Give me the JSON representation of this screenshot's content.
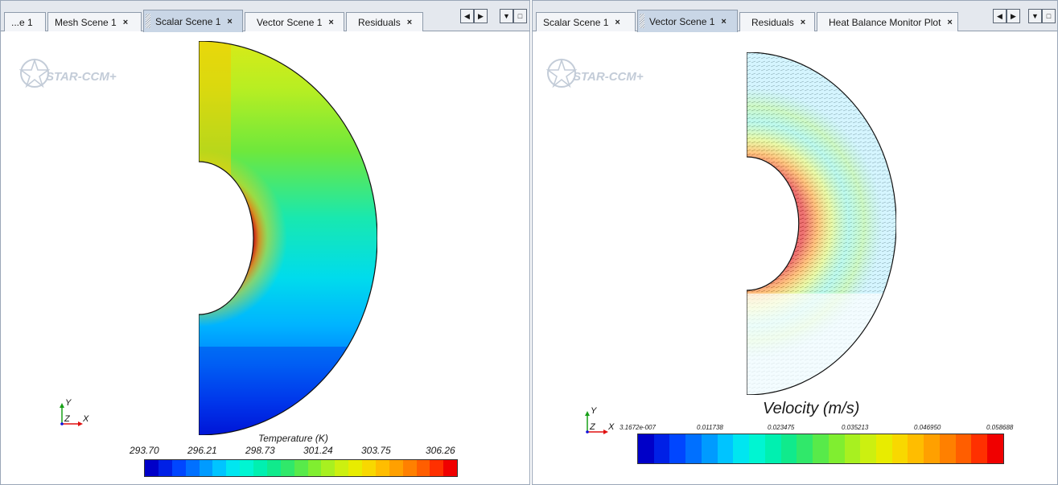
{
  "left_pane": {
    "tabs": [
      {
        "label": "...e 1",
        "closable": false,
        "active": false
      },
      {
        "label": "Mesh Scene 1",
        "closable": true,
        "active": false
      },
      {
        "label": "Scalar Scene 1",
        "closable": true,
        "active": true
      },
      {
        "label": "Vector Scene 1",
        "closable": true,
        "active": false
      },
      {
        "label": "Residuals",
        "closable": true,
        "active": false
      }
    ],
    "close_glyph": "×",
    "logo_text": "STAR-CCM+",
    "legend": {
      "title": "Temperature (K)",
      "ticks": [
        "293.70",
        "296.21",
        "298.73",
        "301.24",
        "303.75",
        "306.26"
      ]
    }
  },
  "right_pane": {
    "tabs": [
      {
        "label": "Scalar Scene 1",
        "closable": true,
        "active": false
      },
      {
        "label": "Vector Scene 1",
        "closable": true,
        "active": true
      },
      {
        "label": "Residuals",
        "closable": true,
        "active": false
      },
      {
        "label": "Heat Balance Monitor Plot",
        "closable": true,
        "active": false
      }
    ],
    "close_glyph": "×",
    "logo_text": "STAR-CCM+",
    "legend": {
      "title": "Velocity (m/s)",
      "ticks": [
        "3.1672e-007",
        "0.011738",
        "0.023475",
        "0.035213",
        "0.046950",
        "0.058688"
      ]
    }
  },
  "controls": {
    "left": "◀",
    "right": "▶",
    "menu": "▼",
    "maximize": "□"
  },
  "axes": {
    "y": "Y",
    "z": "Z",
    "x": "X"
  },
  "colors": {
    "colormap": [
      "#0000c8",
      "#0020e6",
      "#0046ff",
      "#0070ff",
      "#009bff",
      "#00c4ff",
      "#00e6f0",
      "#00f5d2",
      "#00f0b0",
      "#10ea8c",
      "#30e86a",
      "#58ea4a",
      "#80ee30",
      "#a8f020",
      "#ccf010",
      "#e8ec00",
      "#f8d800",
      "#ffbd00",
      "#ffa000",
      "#ff8000",
      "#ff5e00",
      "#ff3000",
      "#f00000"
    ],
    "tab_active": "#c9d6e6",
    "tab_bar": "#e4e8ee"
  }
}
